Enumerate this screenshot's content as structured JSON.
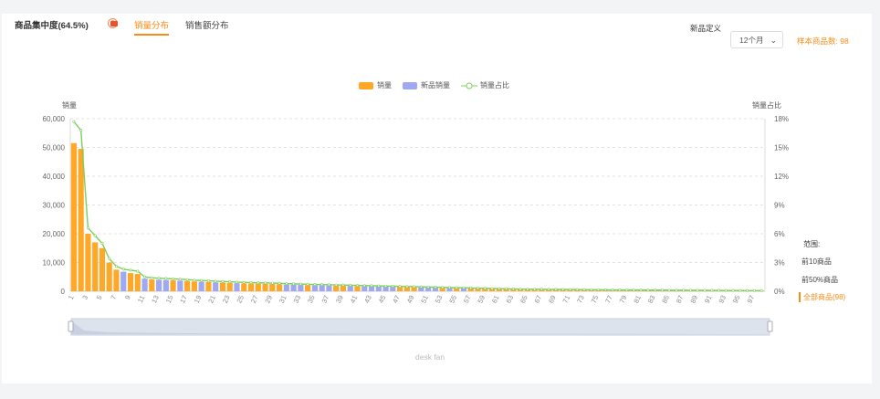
{
  "header": {
    "title": "商品集中度(64.5%)",
    "help_icon": "?",
    "tabs": [
      {
        "label": "销量分布",
        "active": true
      },
      {
        "label": "销售额分布",
        "active": false
      }
    ],
    "new_def_label": "新品定义",
    "new_def_value": "12个月",
    "sample_count": "样本商品数: 98"
  },
  "colors": {
    "sales": "#ffa726",
    "new_sales": "#9fa8f0",
    "share": "#7ccf5a",
    "accent": "#fa8c16"
  },
  "range": {
    "title": "范围:",
    "items": [
      "前10商品",
      "前50%商品",
      "全部商品(98)"
    ],
    "active": 2
  },
  "footer_label": "desk fan",
  "chart_data": {
    "type": "bar",
    "legend": [
      "销量",
      "新品销量",
      "销量占比"
    ],
    "legend_position": "top",
    "ylabel": "销量",
    "ylabel_right": "销量占比",
    "ylim": [
      0,
      60000
    ],
    "yticks": [
      "0",
      "10,000",
      "20,000",
      "30,000",
      "40,000",
      "50,000",
      "60,000"
    ],
    "ylim_right": [
      0,
      18
    ],
    "yticks_right": [
      "0%",
      "3%",
      "6%",
      "9%",
      "12%",
      "15%",
      "18%"
    ],
    "grid": true,
    "new_indices": [
      8,
      11,
      13,
      14,
      16,
      19,
      21,
      24,
      31,
      32,
      33,
      35,
      36,
      37,
      40,
      42,
      43,
      44,
      45,
      46,
      50,
      51,
      52,
      54,
      56
    ],
    "values": [
      51500,
      49500,
      20000,
      17000,
      15000,
      10000,
      7500,
      6800,
      6300,
      6000,
      4400,
      4100,
      4000,
      3900,
      3800,
      3700,
      3600,
      3400,
      3300,
      3200,
      3100,
      3000,
      2900,
      2800,
      2700,
      2650,
      2600,
      2550,
      2500,
      2450,
      2350,
      2300,
      2200,
      2150,
      2100,
      2050,
      2000,
      1950,
      1900,
      1850,
      1800,
      1750,
      1700,
      1650,
      1600,
      1550,
      1500,
      1450,
      1400,
      1350,
      1300,
      1250,
      1200,
      1150,
      1100,
      1050,
      1000,
      950,
      900,
      850,
      800,
      750,
      700,
      680,
      660,
      640,
      620,
      600,
      580,
      560,
      540,
      520,
      500,
      480,
      460,
      440,
      420,
      400,
      390,
      380,
      370,
      360,
      350,
      340,
      330,
      320,
      310,
      300,
      290,
      280,
      270,
      260,
      250,
      240,
      230,
      220,
      210,
      200
    ],
    "share_percent": [
      17.7,
      16.8,
      6.6,
      5.8,
      5.0,
      3.4,
      2.6,
      2.3,
      2.2,
      2.1,
      1.5,
      1.4,
      1.36,
      1.33,
      1.29,
      1.26,
      1.22,
      1.16,
      1.12,
      1.09,
      1.05,
      1.02,
      0.99,
      0.95,
      0.92,
      0.9,
      0.88,
      0.87,
      0.85,
      0.83,
      0.8,
      0.78,
      0.75,
      0.73,
      0.71,
      0.7,
      0.68,
      0.66,
      0.65,
      0.63,
      0.61,
      0.6,
      0.58,
      0.56,
      0.54,
      0.53,
      0.51,
      0.49,
      0.48,
      0.46,
      0.44,
      0.43,
      0.41,
      0.39,
      0.37,
      0.36,
      0.34,
      0.32,
      0.31,
      0.29,
      0.27,
      0.26,
      0.24,
      0.23,
      0.22,
      0.22,
      0.21,
      0.2,
      0.2,
      0.19,
      0.18,
      0.18,
      0.17,
      0.16,
      0.16,
      0.15,
      0.14,
      0.14,
      0.13,
      0.13,
      0.13,
      0.12,
      0.12,
      0.12,
      0.11,
      0.11,
      0.11,
      0.1,
      0.1,
      0.1,
      0.09,
      0.09,
      0.08,
      0.08,
      0.08,
      0.07,
      0.07,
      0.07
    ]
  }
}
